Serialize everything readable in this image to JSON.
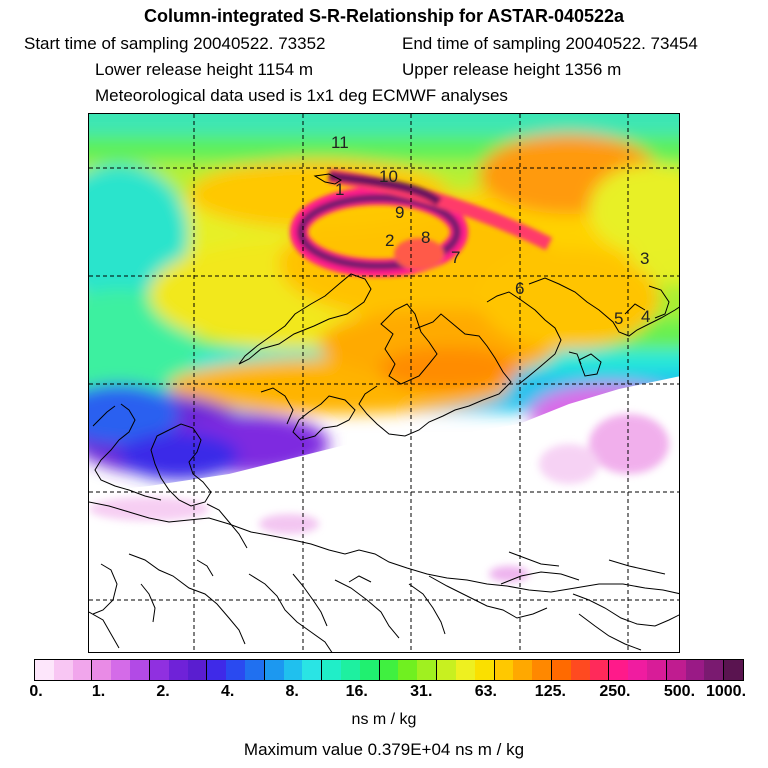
{
  "title": "Column-integrated S-R-Relationship for ASTAR-040522a",
  "header": {
    "start_time": "Start time of sampling 20040522. 73352",
    "end_time": "End time of sampling 20040522. 73454",
    "lower_height": "Lower release height 1154 m",
    "upper_height": "Upper release height 1356 m",
    "met_data": "Meteorological data used is 1x1 deg ECMWF analyses"
  },
  "trajectory_labels": [
    "11",
    "10",
    "1",
    "9",
    "2",
    "8",
    "7",
    "6",
    "3",
    "5",
    "4"
  ],
  "colorbar": {
    "colors": [
      "#fde6fb",
      "#f8c6f3",
      "#f1a6ec",
      "#e98be6",
      "#d46be8",
      "#b24ae6",
      "#9030e0",
      "#6f22d8",
      "#5a1ed0",
      "#3f2ae8",
      "#2a4af0",
      "#2070f0",
      "#1c98f0",
      "#20c0ee",
      "#2ae4e4",
      "#20eec8",
      "#1ef0a0",
      "#20f070",
      "#40f040",
      "#70f020",
      "#a0f020",
      "#c8f020",
      "#eef020",
      "#fae000",
      "#ffc800",
      "#ffa800",
      "#ff8800",
      "#ff6a00",
      "#ff4a20",
      "#ff2a5a",
      "#ff1a8a",
      "#f01ca0",
      "#d81c98",
      "#c01c90",
      "#9a1a86",
      "#7a1a70",
      "#5a1450"
    ],
    "labels": [
      "0.",
      "1.",
      "2.",
      "4.",
      "8.",
      "16.",
      "31.",
      "63.",
      "125.",
      "250.",
      "500.",
      "1000."
    ]
  },
  "units": "ns m / kg",
  "max_value": "Maximum value  0.379E+04 ns m / kg"
}
